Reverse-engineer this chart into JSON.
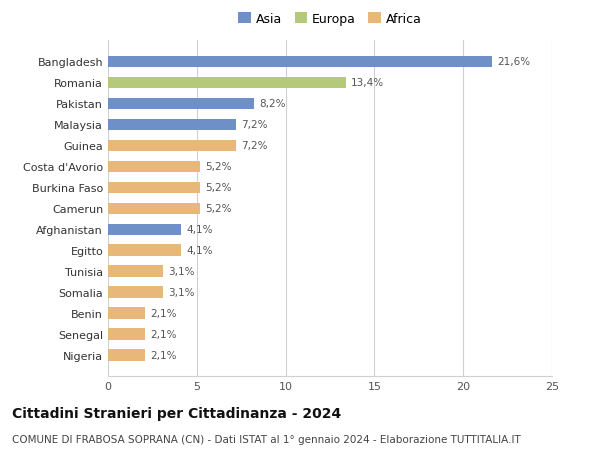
{
  "categories": [
    "Bangladesh",
    "Romania",
    "Pakistan",
    "Malaysia",
    "Guinea",
    "Costa d'Avorio",
    "Burkina Faso",
    "Camerun",
    "Afghanistan",
    "Egitto",
    "Tunisia",
    "Somalia",
    "Benin",
    "Senegal",
    "Nigeria"
  ],
  "values": [
    21.6,
    13.4,
    8.2,
    7.2,
    7.2,
    5.2,
    5.2,
    5.2,
    4.1,
    4.1,
    3.1,
    3.1,
    2.1,
    2.1,
    2.1
  ],
  "labels": [
    "21,6%",
    "13,4%",
    "8,2%",
    "7,2%",
    "7,2%",
    "5,2%",
    "5,2%",
    "5,2%",
    "4,1%",
    "4,1%",
    "3,1%",
    "3,1%",
    "2,1%",
    "2,1%",
    "2,1%"
  ],
  "continents": [
    "Asia",
    "Europa",
    "Asia",
    "Asia",
    "Africa",
    "Africa",
    "Africa",
    "Africa",
    "Asia",
    "Africa",
    "Africa",
    "Africa",
    "Africa",
    "Africa",
    "Africa"
  ],
  "colors": {
    "Asia": "#6f8fc7",
    "Europa": "#b5c97a",
    "Africa": "#e8b87a"
  },
  "legend_order": [
    "Asia",
    "Europa",
    "Africa"
  ],
  "xlim": [
    0,
    25
  ],
  "xticks": [
    0,
    5,
    10,
    15,
    20,
    25
  ],
  "title": "Cittadini Stranieri per Cittadinanza - 2024",
  "subtitle": "COMUNE DI FRABOSA SOPRANA (CN) - Dati ISTAT al 1° gennaio 2024 - Elaborazione TUTTITALIA.IT",
  "title_fontsize": 10,
  "subtitle_fontsize": 7.5,
  "bar_height": 0.55,
  "background_color": "#ffffff",
  "grid_color": "#d0d0d0"
}
